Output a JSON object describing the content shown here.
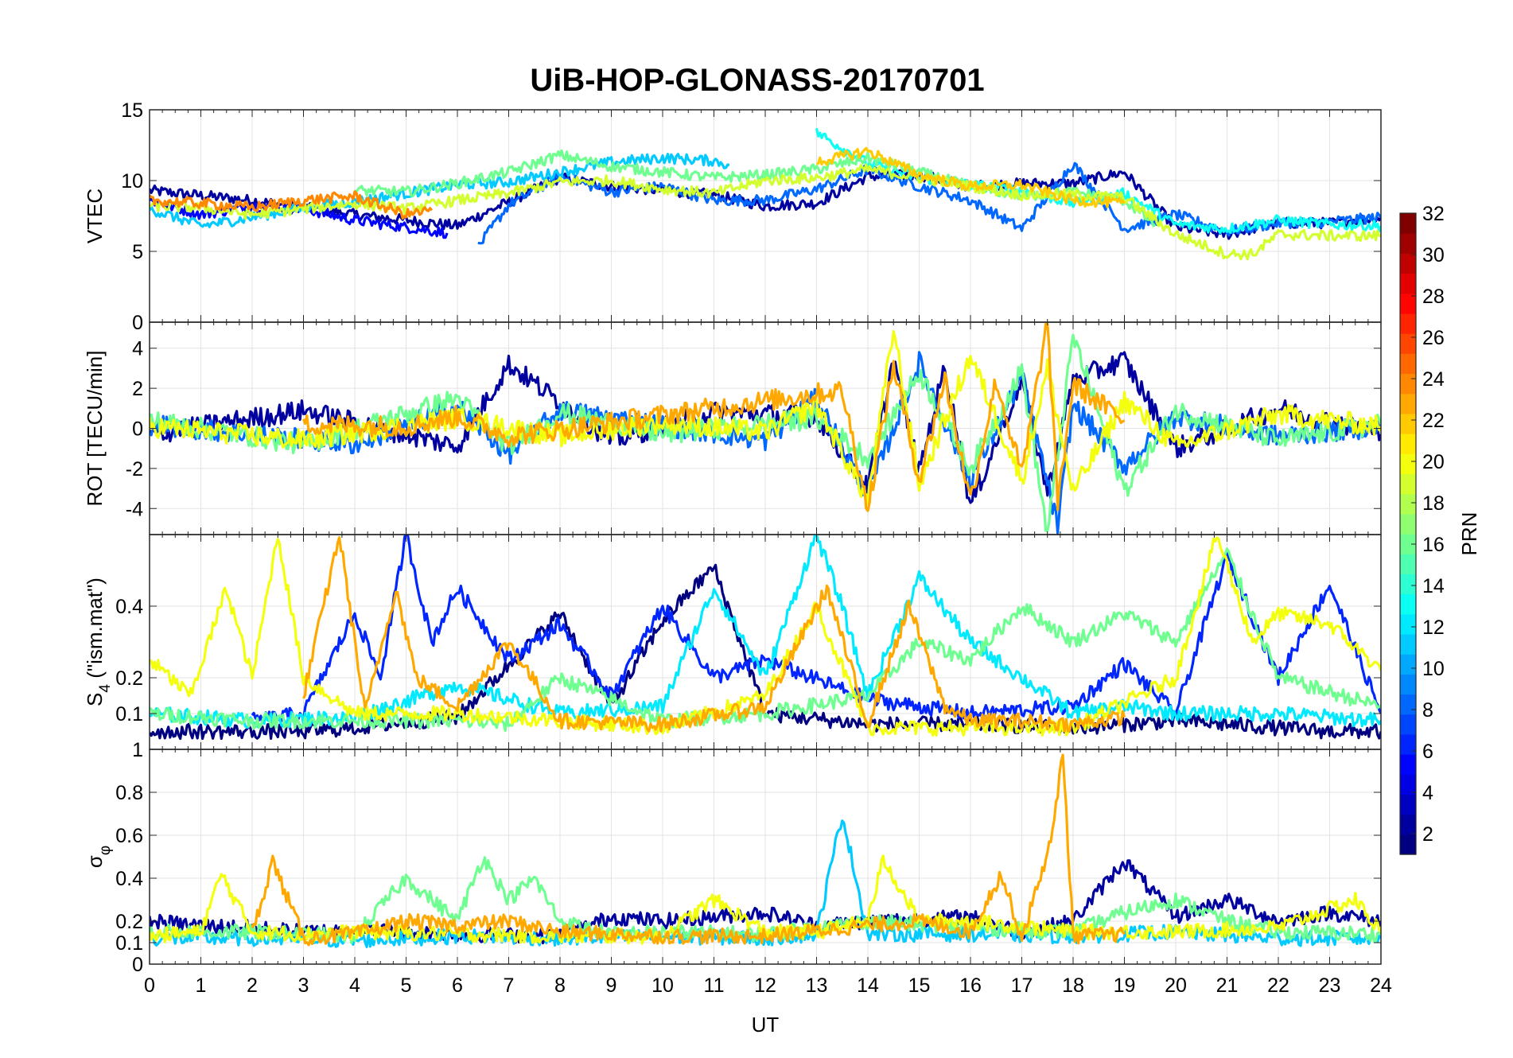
{
  "title": "UiB-HOP-GLONASS-20170701",
  "xlabel": "UT",
  "xticks": [
    "0",
    "1",
    "2",
    "3",
    "4",
    "5",
    "6",
    "7",
    "8",
    "9",
    "10",
    "11",
    "12",
    "13",
    "14",
    "15",
    "16",
    "17",
    "18",
    "19",
    "20",
    "21",
    "22",
    "23",
    "24"
  ],
  "colorbar": {
    "label": "PRN",
    "ticks": [
      "2",
      "4",
      "6",
      "8",
      "10",
      "12",
      "14",
      "16",
      "18",
      "20",
      "22",
      "24",
      "26",
      "28",
      "30",
      "32"
    ],
    "range": [
      1,
      32
    ],
    "colormap": "jet"
  },
  "chart_data": [
    {
      "type": "line",
      "id": "vtec",
      "ylabel": "VTEC",
      "xlim": [
        0,
        24
      ],
      "ylim": [
        0,
        15
      ],
      "yticks": [
        "0",
        "5",
        "10",
        "15"
      ],
      "grid": true,
      "series": [
        {
          "prn": 2,
          "x": [
            0,
            2,
            4,
            6,
            8,
            9,
            10,
            11,
            12,
            13,
            14,
            15,
            16,
            17,
            18,
            19,
            20,
            21,
            22,
            23,
            24
          ],
          "y": [
            9.3,
            8.6,
            7.6,
            6.8,
            10.2,
            9.6,
            9.3,
            9.0,
            8.2,
            8.4,
            10.3,
            10.4,
            9.6,
            9.8,
            9.8,
            10.6,
            6.7,
            6.2,
            7.0,
            7.0,
            7.4
          ]
        },
        {
          "prn": 5,
          "x": [
            0,
            1,
            2,
            3,
            4,
            5,
            5.8
          ],
          "y": [
            8.6,
            7.6,
            8.2,
            8.0,
            7.2,
            6.7,
            6.3
          ]
        },
        {
          "prn": 8,
          "x": [
            6.4,
            7,
            8,
            9,
            10,
            11,
            12,
            13,
            14,
            15,
            16,
            17,
            18,
            19,
            20,
            21,
            22,
            23,
            24
          ],
          "y": [
            5.3,
            8.3,
            10.3,
            9.2,
            9.6,
            8.6,
            8.6,
            9.4,
            10.8,
            9.6,
            8.6,
            6.6,
            11.2,
            6.6,
            7.6,
            6.4,
            7.0,
            7.1,
            7.4
          ]
        },
        {
          "prn": 11,
          "x": [
            0,
            1,
            2,
            3,
            4,
            5,
            6,
            7,
            8,
            9,
            10,
            11,
            11.3
          ],
          "y": [
            8.0,
            6.8,
            7.4,
            8.1,
            8.5,
            9.1,
            9.7,
            9.9,
            10.6,
            11.3,
            11.6,
            11.4,
            11.1
          ]
        },
        {
          "prn": 13,
          "x": [
            13,
            14,
            15,
            16,
            17,
            18,
            19,
            20,
            21,
            22,
            23,
            24
          ],
          "y": [
            13.4,
            11.2,
            10.2,
            9.7,
            9.3,
            8.4,
            9.1,
            6.9,
            6.6,
            7.2,
            6.9,
            6.8
          ]
        },
        {
          "prn": 16,
          "x": [
            4,
            5,
            6,
            7,
            8,
            9,
            10,
            11,
            12,
            13,
            14,
            15,
            16,
            17,
            18,
            19,
            19.6
          ],
          "y": [
            9.3,
            9.2,
            9.8,
            10.6,
            11.8,
            11.0,
            10.6,
            10.2,
            10.4,
            10.8,
            11.6,
            10.6,
            9.6,
            8.9,
            9.2,
            8.6,
            6.9
          ]
        },
        {
          "prn": 19,
          "x": [
            0,
            1,
            2,
            3,
            4,
            5,
            6,
            7,
            8,
            9,
            10,
            11,
            12,
            13,
            14,
            15,
            16,
            17,
            18,
            19,
            20,
            21,
            21.5,
            22,
            23,
            24
          ],
          "y": [
            8.2,
            8.1,
            7.6,
            8.0,
            8.4,
            8.0,
            8.6,
            9.1,
            9.9,
            10.0,
            9.4,
            9.1,
            10.0,
            10.2,
            10.8,
            10.2,
            9.6,
            9.0,
            9.0,
            8.8,
            6.2,
            4.8,
            4.8,
            6.2,
            6.1,
            6.1
          ]
        },
        {
          "prn": 22,
          "x": [
            13,
            14,
            15,
            16,
            17,
            18,
            19
          ],
          "y": [
            11.3,
            12.1,
            10.4,
            9.6,
            9.7,
            8.6,
            8.4
          ]
        },
        {
          "prn": 24,
          "x": [
            0,
            1,
            2,
            3,
            4,
            5,
            5.5
          ],
          "y": [
            8.6,
            8.4,
            8.1,
            8.6,
            8.9,
            7.6,
            7.9
          ]
        }
      ]
    },
    {
      "type": "line",
      "id": "rot",
      "ylabel": "ROT [TECU/min]",
      "xlim": [
        0,
        24
      ],
      "ylim": [
        -5.3,
        5.3
      ],
      "yticks": [
        "-4",
        "-2",
        "0",
        "2",
        "4"
      ],
      "grid": true,
      "series": [
        {
          "prn": 2,
          "x": [
            0,
            3,
            6,
            7,
            9,
            11,
            13,
            14,
            14.5,
            15,
            15.5,
            16,
            17,
            17.5,
            18,
            19,
            20,
            22,
            24
          ],
          "y": [
            -0.3,
            0.9,
            -0.9,
            3.2,
            -0.6,
            0.8,
            0.6,
            -3.0,
            3.5,
            -2.2,
            3.1,
            -3.9,
            2.5,
            -3.2,
            2.4,
            3.4,
            -1.0,
            1.0,
            -0.3
          ]
        },
        {
          "prn": 8,
          "x": [
            0,
            4,
            6,
            7,
            8,
            12,
            13,
            14,
            15,
            16,
            17,
            17.7,
            18,
            19,
            20,
            22,
            24
          ],
          "y": [
            0.2,
            -0.8,
            1.1,
            -1.3,
            0.9,
            -0.6,
            1.5,
            -3.3,
            3.3,
            -2.6,
            2.6,
            -4.9,
            1.2,
            -1.9,
            0.6,
            -0.4,
            0.1
          ]
        },
        {
          "prn": 16,
          "x": [
            0,
            3,
            6,
            7,
            8,
            10,
            13,
            14,
            15,
            16,
            17,
            17.5,
            18,
            19,
            20,
            22,
            24
          ],
          "y": [
            0.4,
            -0.8,
            1.5,
            -0.9,
            0.8,
            -0.3,
            0.5,
            -1.5,
            2.8,
            -2.0,
            2.9,
            -5.3,
            4.6,
            -3.1,
            0.9,
            -0.6,
            0.2
          ]
        },
        {
          "prn": 20,
          "x": [
            0,
            3,
            6,
            8,
            10,
            12,
            13,
            14,
            14.5,
            15,
            16,
            17,
            17.5,
            18,
            19,
            20,
            22,
            24
          ],
          "y": [
            0.1,
            -0.6,
            0.5,
            -0.4,
            0.3,
            -0.2,
            1.2,
            -3.6,
            5.0,
            -2.8,
            3.6,
            -2.6,
            3.0,
            -3.2,
            1.4,
            -0.9,
            0.7,
            0.1
          ]
        },
        {
          "prn": 23,
          "x": [
            3,
            5,
            6,
            7,
            13.5,
            14,
            14.5,
            15,
            15.5,
            16,
            16.5,
            17,
            17.5,
            17.7,
            18,
            19
          ],
          "y": [
            0.2,
            0.1,
            0.6,
            -0.4,
            1.9,
            -4.0,
            3.2,
            -2.6,
            2.5,
            -3.6,
            2.4,
            -2.3,
            5.3,
            -3.7,
            2.2,
            0.4
          ]
        }
      ]
    },
    {
      "type": "line",
      "id": "s4",
      "ylabel": "S4 (\"ism.mat\")",
      "ylabel_main": "S",
      "ylabel_sub": "4",
      "ylabel_rest": " (\"ism.mat\")",
      "xlim": [
        0,
        24
      ],
      "ylim": [
        0,
        0.6
      ],
      "yticks": [
        "0.1",
        "0.2",
        "0.4"
      ],
      "ytick_values": [
        0.1,
        0.2,
        0.4
      ],
      "grid": true,
      "series": [
        {
          "prn": 1,
          "x": [
            0,
            3,
            4,
            6,
            8,
            9,
            10,
            11,
            12,
            14,
            16,
            18,
            20,
            22,
            23,
            24
          ],
          "y": [
            0.05,
            0.05,
            0.06,
            0.09,
            0.38,
            0.12,
            0.36,
            0.51,
            0.1,
            0.07,
            0.07,
            0.06,
            0.08,
            0.06,
            0.05,
            0.05
          ]
        },
        {
          "prn": 6,
          "x": [
            2,
            3,
            4,
            4.5,
            5,
            5.5,
            6,
            7,
            8,
            9,
            10,
            11,
            12,
            14,
            16,
            18,
            19,
            20,
            21,
            22,
            23,
            24
          ],
          "y": [
            0.08,
            0.1,
            0.38,
            0.2,
            0.6,
            0.3,
            0.45,
            0.25,
            0.35,
            0.15,
            0.4,
            0.2,
            0.25,
            0.14,
            0.1,
            0.12,
            0.24,
            0.1,
            0.54,
            0.2,
            0.46,
            0.1
          ]
        },
        {
          "prn": 12,
          "x": [
            0,
            2,
            4,
            6,
            8,
            10,
            11,
            12,
            13,
            13.5,
            14,
            15,
            16,
            17,
            18,
            19,
            20,
            22,
            24
          ],
          "y": [
            0.1,
            0.08,
            0.09,
            0.18,
            0.1,
            0.12,
            0.45,
            0.2,
            0.6,
            0.4,
            0.15,
            0.48,
            0.3,
            0.2,
            0.1,
            0.12,
            0.1,
            0.1,
            0.08
          ]
        },
        {
          "prn": 16,
          "x": [
            0,
            2,
            4,
            6,
            7,
            8,
            10,
            12,
            14,
            15,
            16,
            17,
            18,
            19,
            20,
            21,
            22,
            24
          ],
          "y": [
            0.1,
            0.08,
            0.08,
            0.08,
            0.07,
            0.2,
            0.08,
            0.1,
            0.15,
            0.3,
            0.25,
            0.4,
            0.3,
            0.38,
            0.3,
            0.55,
            0.2,
            0.12
          ]
        },
        {
          "prn": 20,
          "x": [
            0,
            0.8,
            1.5,
            2,
            2.5,
            3,
            4,
            6,
            8,
            10,
            12,
            13,
            14,
            16,
            18,
            20,
            20.8,
            21.5,
            22,
            23,
            24
          ],
          "y": [
            0.25,
            0.15,
            0.45,
            0.2,
            0.6,
            0.2,
            0.1,
            0.1,
            0.08,
            0.06,
            0.15,
            0.4,
            0.06,
            0.06,
            0.06,
            0.2,
            0.6,
            0.3,
            0.38,
            0.35,
            0.22
          ]
        },
        {
          "prn": 23,
          "x": [
            3,
            3.7,
            4.2,
            4.8,
            5.2,
            6,
            7,
            8,
            10,
            12,
            13.2,
            14,
            14.8,
            15.5,
            16,
            17,
            18,
            19
          ],
          "y": [
            0.15,
            0.6,
            0.1,
            0.45,
            0.2,
            0.12,
            0.3,
            0.08,
            0.07,
            0.12,
            0.45,
            0.07,
            0.4,
            0.12,
            0.08,
            0.08,
            0.07,
            0.09
          ]
        }
      ]
    },
    {
      "type": "line",
      "id": "sigma-phi",
      "ylabel": "σφ",
      "ylabel_main": "σ",
      "ylabel_sub": "φ",
      "xlim": [
        0,
        24
      ],
      "ylim": [
        0,
        1
      ],
      "yticks": [
        "0",
        "0.1",
        "0.2",
        "0.4",
        "0.6",
        "0.8",
        "1"
      ],
      "ytick_values": [
        0,
        0.1,
        0.2,
        0.4,
        0.6,
        0.8,
        1
      ],
      "grid": true,
      "series": [
        {
          "prn": 2,
          "x": [
            0,
            1,
            2,
            3,
            4,
            6,
            8,
            9,
            10,
            11,
            12,
            13,
            14,
            16,
            17,
            18,
            19,
            20,
            21,
            22,
            23,
            24
          ],
          "y": [
            0.2,
            0.18,
            0.17,
            0.15,
            0.16,
            0.14,
            0.13,
            0.22,
            0.2,
            0.22,
            0.24,
            0.18,
            0.2,
            0.22,
            0.15,
            0.2,
            0.48,
            0.22,
            0.3,
            0.2,
            0.24,
            0.2
          ]
        },
        {
          "prn": 11,
          "x": [
            0,
            2,
            4,
            6,
            8,
            10,
            12,
            13,
            13.5,
            14,
            16,
            18,
            20,
            22,
            24
          ],
          "y": [
            0.12,
            0.12,
            0.11,
            0.13,
            0.12,
            0.13,
            0.12,
            0.14,
            0.7,
            0.14,
            0.14,
            0.13,
            0.15,
            0.12,
            0.12
          ]
        },
        {
          "prn": 16,
          "x": [
            0,
            2,
            4,
            5,
            6,
            6.5,
            7,
            7.5,
            8,
            9,
            10,
            12,
            14,
            16,
            18,
            19,
            20,
            21,
            22,
            24
          ],
          "y": [
            0.15,
            0.15,
            0.13,
            0.4,
            0.2,
            0.5,
            0.3,
            0.4,
            0.2,
            0.14,
            0.15,
            0.14,
            0.2,
            0.17,
            0.15,
            0.24,
            0.3,
            0.2,
            0.15,
            0.14
          ]
        },
        {
          "prn": 20,
          "x": [
            0,
            1,
            1.4,
            2,
            3,
            4,
            6,
            8,
            10,
            11,
            12,
            13,
            14,
            14.3,
            15,
            16,
            18,
            20,
            22,
            23.5,
            24
          ],
          "y": [
            0.13,
            0.15,
            0.42,
            0.15,
            0.14,
            0.15,
            0.14,
            0.13,
            0.13,
            0.3,
            0.15,
            0.15,
            0.2,
            0.49,
            0.2,
            0.2,
            0.15,
            0.15,
            0.17,
            0.3,
            0.15
          ]
        },
        {
          "prn": 23,
          "x": [
            2,
            2.4,
            3,
            4,
            5,
            6,
            7,
            8,
            10,
            12,
            14,
            15,
            16,
            16.6,
            17,
            17.6,
            17.8,
            18,
            19
          ],
          "y": [
            0.14,
            0.48,
            0.12,
            0.14,
            0.2,
            0.18,
            0.2,
            0.15,
            0.13,
            0.13,
            0.18,
            0.2,
            0.15,
            0.42,
            0.12,
            0.6,
            1.0,
            0.13,
            0.14
          ]
        }
      ]
    }
  ]
}
